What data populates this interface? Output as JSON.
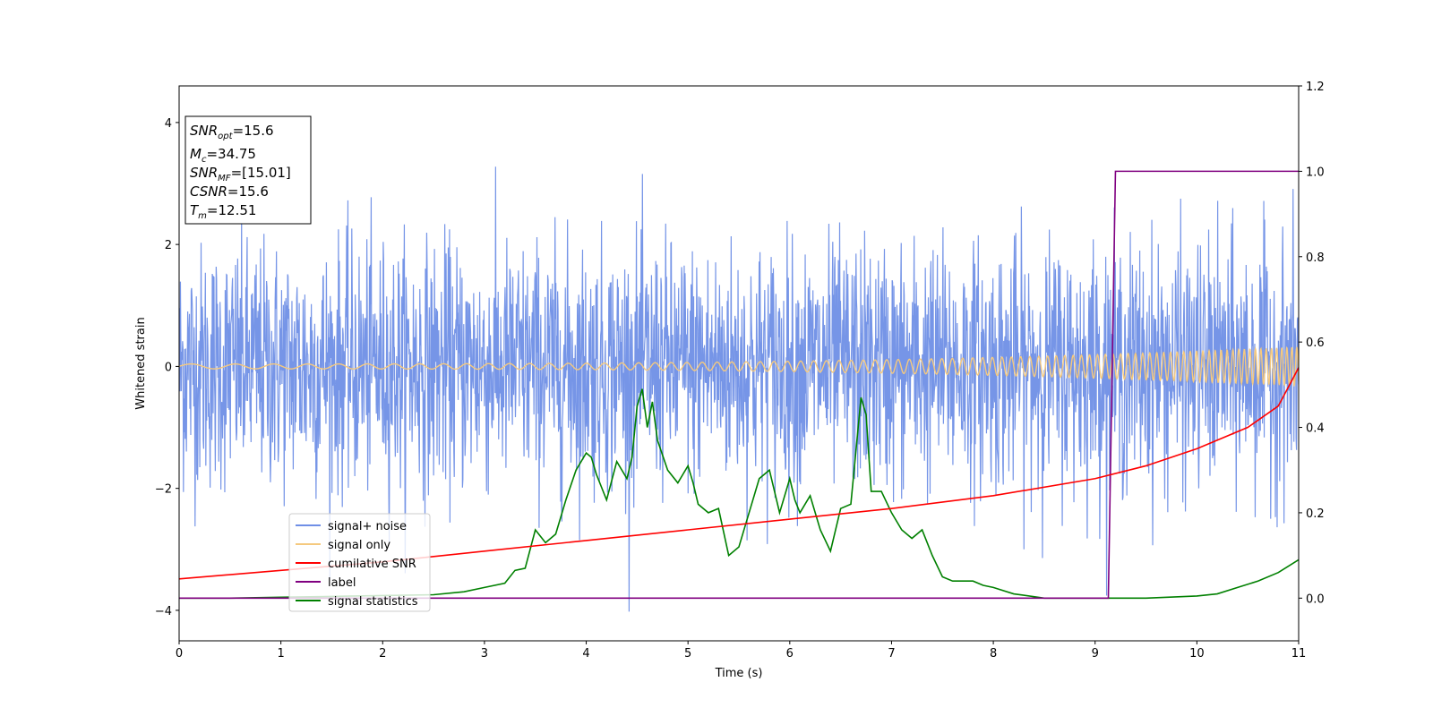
{
  "chart_data": {
    "type": "line",
    "xlabel": "Time (s)",
    "ylabel": "Whitened strain",
    "xlim": [
      0,
      11
    ],
    "ylim_left": [
      -4.5,
      4.6
    ],
    "ylim_right": [
      -0.1,
      1.2
    ],
    "x_ticks": [
      "0",
      "1",
      "2",
      "3",
      "4",
      "5",
      "6",
      "7",
      "8",
      "9",
      "10",
      "11"
    ],
    "y_ticks_left": [
      "4",
      "2",
      "0",
      "−2",
      "−4"
    ],
    "y_ticks_right": [
      "1.2",
      "1.0",
      "0.8",
      "0.6",
      "0.4",
      "0.2",
      "0.0"
    ],
    "info_box": [
      {
        "sym": "SNR",
        "sub": "opt",
        "value": "=15.6"
      },
      {
        "sym": "M",
        "sub": "c",
        "value": "=34.75"
      },
      {
        "sym": "SNR",
        "sub": "MF",
        "value": "=[15.01]"
      },
      {
        "sym": "CSNR",
        "sub": "",
        "value": "=15.6"
      },
      {
        "sym": "T",
        "sub": "m",
        "value": "=12.51"
      }
    ],
    "legend": {
      "placement": "lower-left",
      "entries": [
        {
          "label": "signal+ noise",
          "color": "#6f8fe6"
        },
        {
          "label": "signal only",
          "color": "#f5c97e"
        },
        {
          "label": "cumilative SNR",
          "color": "#ff0000"
        },
        {
          "label": "label",
          "color": "#800080"
        },
        {
          "label": "signal statistics",
          "color": "#008000"
        }
      ]
    },
    "series": [
      {
        "name": "signal+ noise",
        "axis": "left",
        "color": "#6f8fe6",
        "description_hidden": true,
        "x_range": [
          0,
          11
        ],
        "noise_amplitude": 1.0,
        "max": 4.15,
        "min": -4.05
      },
      {
        "name": "signal only",
        "axis": "left",
        "color": "#f5c97e",
        "x_range": [
          0,
          11
        ],
        "amplitude_start": 0.04,
        "amplitude_end": 0.32
      },
      {
        "name": "cumilative SNR",
        "axis": "right",
        "color": "#ff0000",
        "x": [
          0,
          1,
          2,
          3,
          4,
          5,
          6,
          7,
          8,
          9,
          9.5,
          10,
          10.5,
          10.8,
          11
        ],
        "y": [
          0.045,
          0.065,
          0.085,
          0.11,
          0.135,
          0.16,
          0.185,
          0.21,
          0.24,
          0.28,
          0.31,
          0.35,
          0.4,
          0.45,
          0.54
        ]
      },
      {
        "name": "label",
        "axis": "right",
        "color": "#800080",
        "x": [
          0,
          9.13,
          9.2,
          11
        ],
        "y": [
          0,
          0,
          1.0,
          1.0
        ]
      },
      {
        "name": "signal statistics",
        "axis": "right",
        "color": "#008000",
        "x": [
          0,
          0.5,
          1,
          1.5,
          2,
          2.5,
          2.8,
          3.0,
          3.2,
          3.3,
          3.4,
          3.5,
          3.6,
          3.7,
          3.8,
          3.9,
          4.0,
          4.05,
          4.1,
          4.2,
          4.3,
          4.4,
          4.45,
          4.5,
          4.55,
          4.6,
          4.65,
          4.7,
          4.8,
          4.9,
          5.0,
          5.05,
          5.1,
          5.2,
          5.3,
          5.4,
          5.5,
          5.6,
          5.7,
          5.8,
          5.9,
          6.0,
          6.05,
          6.1,
          6.2,
          6.3,
          6.4,
          6.5,
          6.6,
          6.7,
          6.75,
          6.8,
          6.9,
          7.0,
          7.1,
          7.2,
          7.3,
          7.4,
          7.5,
          7.6,
          7.7,
          7.8,
          7.9,
          8.0,
          8.2,
          8.5,
          8.8,
          9.0,
          9.5,
          10.0,
          10.2,
          10.4,
          10.6,
          10.8,
          11.0
        ],
        "y": [
          0.0,
          0.0,
          0.002,
          0.004,
          0.006,
          0.008,
          0.015,
          0.025,
          0.035,
          0.065,
          0.07,
          0.16,
          0.13,
          0.15,
          0.23,
          0.3,
          0.34,
          0.33,
          0.29,
          0.23,
          0.32,
          0.28,
          0.33,
          0.45,
          0.49,
          0.4,
          0.46,
          0.37,
          0.3,
          0.27,
          0.31,
          0.27,
          0.22,
          0.2,
          0.21,
          0.1,
          0.12,
          0.2,
          0.28,
          0.3,
          0.2,
          0.28,
          0.23,
          0.2,
          0.24,
          0.16,
          0.11,
          0.21,
          0.22,
          0.47,
          0.43,
          0.25,
          0.25,
          0.2,
          0.16,
          0.14,
          0.16,
          0.1,
          0.05,
          0.04,
          0.04,
          0.04,
          0.03,
          0.025,
          0.01,
          0.0,
          0.0,
          0.0,
          0.0,
          0.005,
          0.01,
          0.025,
          0.04,
          0.06,
          0.09
        ]
      }
    ]
  }
}
